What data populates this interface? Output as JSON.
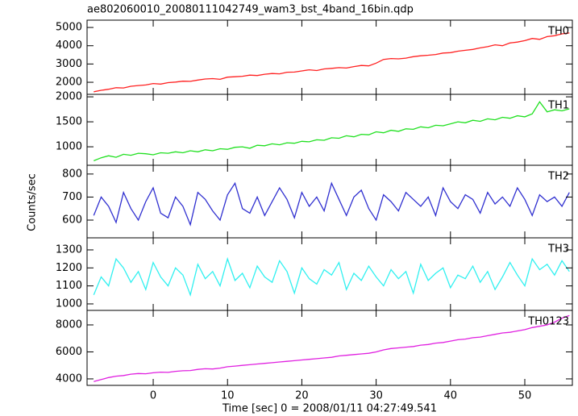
{
  "title": "ae802060010_20080111042749_wam3_bst_4band_16bin.qdp",
  "ylabel": "Counts/sec",
  "xlabel": "Time [sec] 0 = 2008/01/11 04:27:49.541",
  "xlim": [
    -8.9,
    56.4
  ],
  "xticks": [
    0,
    10,
    20,
    30,
    40,
    50
  ],
  "x": [
    -8,
    -7,
    -6,
    -5,
    -4,
    -3,
    -2,
    -1,
    0,
    1,
    2,
    3,
    4,
    5,
    6,
    7,
    8,
    9,
    10,
    11,
    12,
    13,
    14,
    15,
    16,
    17,
    18,
    19,
    20,
    21,
    22,
    23,
    24,
    25,
    26,
    27,
    28,
    29,
    30,
    31,
    32,
    33,
    34,
    35,
    36,
    37,
    38,
    39,
    40,
    41,
    42,
    43,
    44,
    45,
    46,
    47,
    48,
    49,
    50,
    51,
    52,
    53,
    54,
    55,
    56
  ],
  "chart_data": [
    {
      "type": "line",
      "name": "TH0",
      "color": "#ff2020",
      "ylim": [
        1340,
        5400
      ],
      "yticks": [
        2000,
        3000,
        4000,
        5000
      ],
      "values": [
        1480,
        1560,
        1620,
        1700,
        1690,
        1780,
        1820,
        1850,
        1930,
        1900,
        1980,
        2010,
        2060,
        2050,
        2120,
        2180,
        2200,
        2160,
        2280,
        2300,
        2330,
        2390,
        2370,
        2440,
        2480,
        2460,
        2550,
        2560,
        2620,
        2680,
        2640,
        2730,
        2760,
        2800,
        2780,
        2860,
        2920,
        2900,
        3050,
        3250,
        3300,
        3280,
        3320,
        3400,
        3450,
        3480,
        3520,
        3600,
        3620,
        3700,
        3750,
        3800,
        3880,
        3950,
        4050,
        4000,
        4150,
        4200,
        4280,
        4400,
        4350,
        4500,
        4550,
        4650,
        4700
      ]
    },
    {
      "type": "line",
      "name": "TH1",
      "color": "#20e020",
      "ylim": [
        630,
        2050
      ],
      "yticks": [
        1000,
        1500,
        2000
      ],
      "values": [
        720,
        780,
        820,
        790,
        850,
        830,
        870,
        860,
        840,
        880,
        870,
        900,
        880,
        920,
        900,
        940,
        920,
        960,
        950,
        990,
        1000,
        970,
        1030,
        1020,
        1060,
        1040,
        1080,
        1070,
        1110,
        1100,
        1140,
        1130,
        1180,
        1170,
        1220,
        1200,
        1250,
        1240,
        1300,
        1280,
        1330,
        1310,
        1360,
        1350,
        1400,
        1380,
        1430,
        1420,
        1460,
        1500,
        1480,
        1530,
        1510,
        1560,
        1540,
        1590,
        1570,
        1620,
        1600,
        1660,
        1900,
        1700,
        1740,
        1720,
        1760
      ]
    },
    {
      "type": "line",
      "name": "TH2",
      "color": "#3030d0",
      "ylim": [
        523,
        838
      ],
      "yticks": [
        600,
        700,
        800
      ],
      "values": [
        620,
        700,
        660,
        590,
        720,
        650,
        600,
        680,
        740,
        630,
        610,
        700,
        660,
        580,
        720,
        690,
        640,
        600,
        710,
        760,
        650,
        630,
        700,
        620,
        680,
        740,
        690,
        610,
        720,
        660,
        700,
        640,
        760,
        690,
        620,
        700,
        730,
        650,
        600,
        710,
        680,
        640,
        720,
        690,
        660,
        700,
        620,
        740,
        680,
        650,
        710,
        690,
        630,
        720,
        670,
        700,
        660,
        740,
        690,
        620,
        710,
        680,
        700,
        660,
        720
      ]
    },
    {
      "type": "line",
      "name": "TH3",
      "color": "#30f0f0",
      "ylim": [
        964,
        1367
      ],
      "yticks": [
        1000,
        1100,
        1200,
        1300
      ],
      "values": [
        1050,
        1150,
        1100,
        1250,
        1200,
        1120,
        1180,
        1080,
        1230,
        1150,
        1100,
        1200,
        1160,
        1050,
        1220,
        1140,
        1180,
        1100,
        1250,
        1130,
        1170,
        1090,
        1210,
        1150,
        1120,
        1240,
        1180,
        1060,
        1200,
        1140,
        1110,
        1190,
        1160,
        1230,
        1080,
        1170,
        1130,
        1210,
        1150,
        1100,
        1190,
        1140,
        1180,
        1060,
        1220,
        1130,
        1170,
        1200,
        1090,
        1160,
        1140,
        1210,
        1120,
        1180,
        1080,
        1150,
        1230,
        1160,
        1100,
        1250,
        1190,
        1220,
        1160,
        1240,
        1180
      ]
    },
    {
      "type": "line",
      "name": "TH0123",
      "color": "#e020e0",
      "ylim": [
        3520,
        9075
      ],
      "yticks": [
        4000,
        6000,
        8000
      ],
      "values": [
        3800,
        3950,
        4100,
        4200,
        4250,
        4350,
        4400,
        4380,
        4450,
        4500,
        4480,
        4560,
        4600,
        4620,
        4700,
        4750,
        4730,
        4800,
        4900,
        4950,
        5000,
        5050,
        5100,
        5150,
        5200,
        5250,
        5300,
        5350,
        5400,
        5450,
        5500,
        5550,
        5600,
        5700,
        5750,
        5800,
        5850,
        5900,
        6000,
        6150,
        6250,
        6300,
        6350,
        6400,
        6500,
        6550,
        6650,
        6700,
        6800,
        6900,
        6950,
        7050,
        7100,
        7200,
        7300,
        7400,
        7450,
        7550,
        7650,
        7800,
        7900,
        8000,
        8200,
        8500,
        8700
      ]
    }
  ]
}
